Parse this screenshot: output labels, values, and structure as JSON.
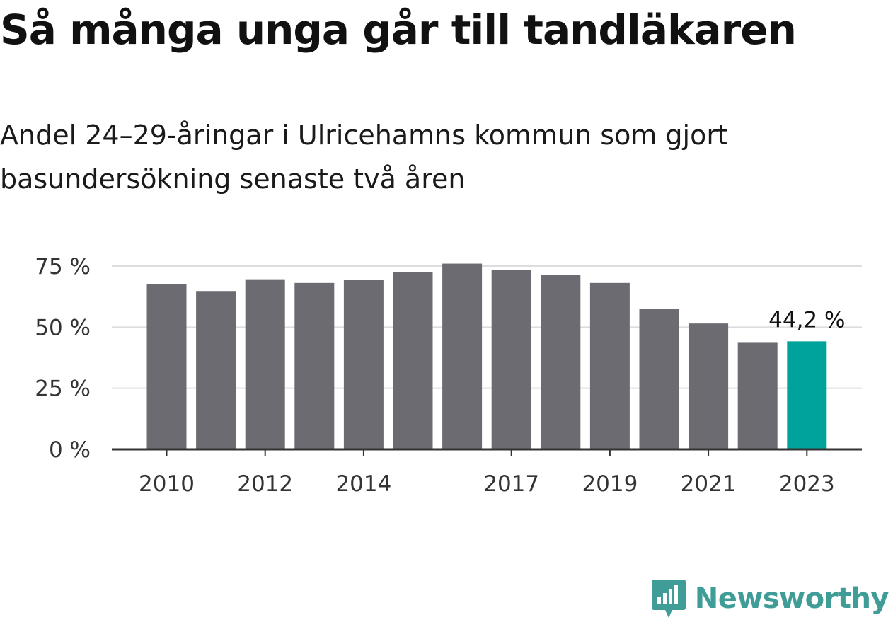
{
  "title": "Så många unga går till tandläkaren",
  "subtitle": "Andel 24–29-åringar i Ulricehamns kommun som gjort basundersökning senaste två åren",
  "brand": {
    "name": "Newsworthy",
    "icon": "newsworthy-logo-icon",
    "color": "#3f9c96"
  },
  "colors": {
    "bar": "#6c6b72",
    "highlight": "#00a39b",
    "grid": "#dddddd",
    "axis": "#333333"
  },
  "chart_data": {
    "type": "bar",
    "categories": [
      "2010",
      "2011",
      "2012",
      "2013",
      "2014",
      "2015",
      "2016",
      "2017",
      "2018",
      "2019",
      "2020",
      "2021",
      "2022",
      "2023"
    ],
    "values": [
      67.5,
      64.8,
      69.6,
      68.1,
      69.3,
      72.6,
      76.0,
      73.4,
      71.5,
      68.1,
      57.6,
      51.5,
      43.6,
      44.2
    ],
    "x_tick_labels": [
      "2010",
      "2012",
      "2014",
      "2017",
      "2019",
      "2021",
      "2023"
    ],
    "y_ticks": [
      0,
      25,
      50,
      75
    ],
    "y_tick_labels": [
      "0 %",
      "25 %",
      "50 %",
      "75 %"
    ],
    "ylim": [
      0,
      75
    ],
    "highlight_category": "2023",
    "highlight_label": "44,2 %",
    "grid": true,
    "xlabel": "",
    "ylabel": ""
  }
}
